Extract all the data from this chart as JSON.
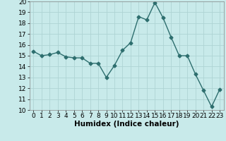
{
  "x": [
    0,
    1,
    2,
    3,
    4,
    5,
    6,
    7,
    8,
    9,
    10,
    11,
    12,
    13,
    14,
    15,
    16,
    17,
    18,
    19,
    20,
    21,
    22,
    23
  ],
  "y": [
    15.4,
    15.0,
    15.1,
    15.3,
    14.9,
    14.8,
    14.8,
    14.3,
    14.3,
    13.0,
    14.1,
    15.5,
    16.2,
    18.6,
    18.3,
    19.9,
    18.5,
    16.7,
    15.0,
    15.0,
    13.3,
    11.8,
    10.3,
    11.9
  ],
  "xlabel": "Humidex (Indice chaleur)",
  "ylim": [
    10,
    20
  ],
  "xlim_min": -0.5,
  "xlim_max": 23.5,
  "yticks": [
    10,
    11,
    12,
    13,
    14,
    15,
    16,
    17,
    18,
    19,
    20
  ],
  "xticks": [
    0,
    1,
    2,
    3,
    4,
    5,
    6,
    7,
    8,
    9,
    10,
    11,
    12,
    13,
    14,
    15,
    16,
    17,
    18,
    19,
    20,
    21,
    22,
    23
  ],
  "line_color": "#2d6e6e",
  "marker": "D",
  "marker_size": 2.5,
  "bg_color": "#c8eaea",
  "grid_color": "#aed4d4",
  "line_width": 1.0,
  "xlabel_fontsize": 7.5,
  "tick_fontsize": 6.5
}
